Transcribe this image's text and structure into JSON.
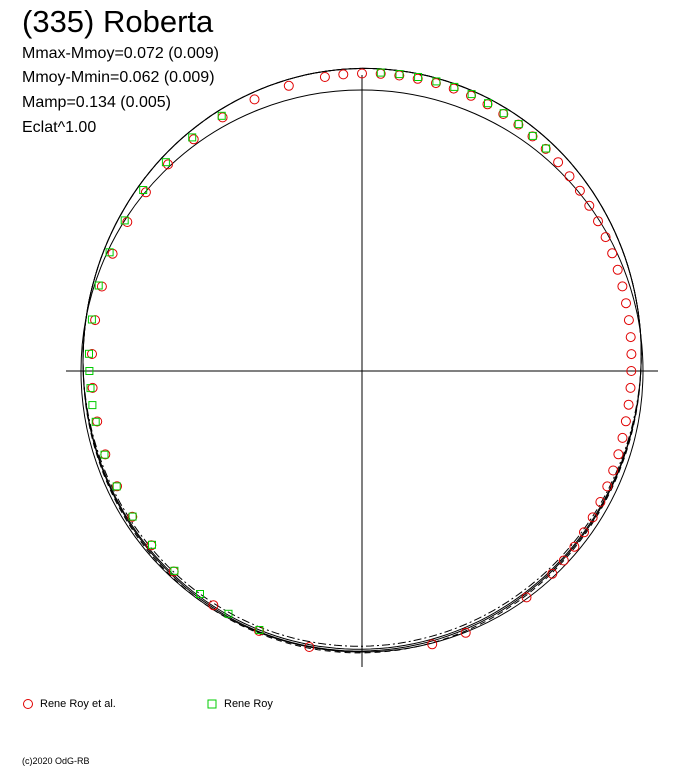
{
  "title": "(335) Roberta",
  "stats": [
    "Mmax-Mmoy=0.072 (0.009)",
    "Mmoy-Mmin=0.062 (0.009)",
    "Mamp=0.134 (0.005)",
    "Eclat^1.00"
  ],
  "credit": "(c)2020 OdG-RB",
  "colors": {
    "series1": "#e00000",
    "series2": "#00cc00",
    "axis": "#000000"
  },
  "chart_data": {
    "type": "scatter",
    "coordinate_system": "polar (phase 0-1 as angle, magnitude offset as radius)",
    "grid": false,
    "legend_position": "bottom-left",
    "reference_curves": [
      "solid",
      "solid",
      "dash-dot",
      "dashed"
    ],
    "series": [
      {
        "name": "Rene Roy et al.",
        "marker": "circle",
        "color": "#e00000",
        "points": [
          {
            "phase": 0.0,
            "dmag": 0.055
          },
          {
            "phase": 0.01,
            "dmag": 0.056
          },
          {
            "phase": 0.02,
            "dmag": 0.056
          },
          {
            "phase": 0.03,
            "dmag": 0.055
          },
          {
            "phase": 0.04,
            "dmag": 0.054
          },
          {
            "phase": 0.05,
            "dmag": 0.053
          },
          {
            "phase": 0.06,
            "dmag": 0.05
          },
          {
            "phase": 0.07,
            "dmag": 0.046
          },
          {
            "phase": 0.08,
            "dmag": 0.041
          },
          {
            "phase": 0.09,
            "dmag": 0.036
          },
          {
            "phase": 0.1,
            "dmag": 0.03
          },
          {
            "phase": 0.11,
            "dmag": 0.024
          },
          {
            "phase": 0.12,
            "dmag": 0.018
          },
          {
            "phase": 0.13,
            "dmag": 0.012
          },
          {
            "phase": 0.14,
            "dmag": 0.006
          },
          {
            "phase": 0.15,
            "dmag": 0.0
          },
          {
            "phase": 0.16,
            "dmag": -0.005
          },
          {
            "phase": 0.17,
            "dmag": -0.01
          },
          {
            "phase": 0.18,
            "dmag": -0.015
          },
          {
            "phase": 0.19,
            "dmag": -0.02
          },
          {
            "phase": 0.2,
            "dmag": -0.024
          },
          {
            "phase": 0.21,
            "dmag": -0.028
          },
          {
            "phase": 0.22,
            "dmag": -0.031
          },
          {
            "phase": 0.23,
            "dmag": -0.034
          },
          {
            "phase": 0.24,
            "dmag": -0.037
          },
          {
            "phase": 0.25,
            "dmag": -0.039
          },
          {
            "phase": 0.26,
            "dmag": -0.04
          },
          {
            "phase": 0.27,
            "dmag": -0.041
          },
          {
            "phase": 0.28,
            "dmag": -0.041
          },
          {
            "phase": 0.29,
            "dmag": -0.04
          },
          {
            "phase": 0.3,
            "dmag": -0.038
          },
          {
            "phase": 0.31,
            "dmag": -0.036
          },
          {
            "phase": 0.32,
            "dmag": -0.033
          },
          {
            "phase": 0.33,
            "dmag": -0.03
          },
          {
            "phase": 0.34,
            "dmag": -0.026
          },
          {
            "phase": 0.35,
            "dmag": -0.022
          },
          {
            "phase": 0.36,
            "dmag": -0.018
          },
          {
            "phase": 0.37,
            "dmag": -0.014
          },
          {
            "phase": 0.38,
            "dmag": -0.01
          },
          {
            "phase": 0.4,
            "dmag": -0.004
          },
          {
            "phase": 0.44,
            "dmag": 0.002
          },
          {
            "phase": 0.46,
            "dmag": 0.004
          },
          {
            "phase": 0.53,
            "dmag": 0.0
          },
          {
            "phase": 0.56,
            "dmag": -0.005
          },
          {
            "phase": 0.59,
            "dmag": -0.012
          },
          {
            "phase": 0.62,
            "dmag": -0.02
          },
          {
            "phase": 0.64,
            "dmag": -0.025
          },
          {
            "phase": 0.66,
            "dmag": -0.03
          },
          {
            "phase": 0.68,
            "dmag": -0.034
          },
          {
            "phase": 0.7,
            "dmag": -0.037
          },
          {
            "phase": 0.72,
            "dmag": -0.038
          },
          {
            "phase": 0.74,
            "dmag": -0.037
          },
          {
            "phase": 0.76,
            "dmag": -0.035
          },
          {
            "phase": 0.78,
            "dmag": -0.031
          },
          {
            "phase": 0.8,
            "dmag": -0.025
          },
          {
            "phase": 0.82,
            "dmag": -0.018
          },
          {
            "phase": 0.84,
            "dmag": -0.01
          },
          {
            "phase": 0.86,
            "dmag": -0.002
          },
          {
            "phase": 0.88,
            "dmag": 0.008
          },
          {
            "phase": 0.9,
            "dmag": 0.018
          },
          {
            "phase": 0.92,
            "dmag": 0.028
          },
          {
            "phase": 0.94,
            "dmag": 0.037
          },
          {
            "phase": 0.96,
            "dmag": 0.045
          },
          {
            "phase": 0.98,
            "dmag": 0.051
          },
          {
            "phase": 0.99,
            "dmag": 0.054
          }
        ]
      },
      {
        "name": "Rene Roy",
        "marker": "square",
        "color": "#00cc00",
        "points": [
          {
            "phase": 0.01,
            "dmag": 0.06
          },
          {
            "phase": 0.02,
            "dmag": 0.061
          },
          {
            "phase": 0.03,
            "dmag": 0.061
          },
          {
            "phase": 0.04,
            "dmag": 0.06
          },
          {
            "phase": 0.05,
            "dmag": 0.059
          },
          {
            "phase": 0.06,
            "dmag": 0.056
          },
          {
            "phase": 0.07,
            "dmag": 0.05
          },
          {
            "phase": 0.08,
            "dmag": 0.044
          },
          {
            "phase": 0.09,
            "dmag": 0.038
          },
          {
            "phase": 0.1,
            "dmag": 0.032
          },
          {
            "phase": 0.11,
            "dmag": 0.026
          },
          {
            "phase": 0.56,
            "dmag": -0.008
          },
          {
            "phase": 0.58,
            "dmag": -0.013
          },
          {
            "phase": 0.6,
            "dmag": -0.018
          },
          {
            "phase": 0.62,
            "dmag": -0.023
          },
          {
            "phase": 0.64,
            "dmag": -0.028
          },
          {
            "phase": 0.66,
            "dmag": -0.031
          },
          {
            "phase": 0.68,
            "dmag": -0.033
          },
          {
            "phase": 0.7,
            "dmag": -0.034
          },
          {
            "phase": 0.72,
            "dmag": -0.033
          },
          {
            "phase": 0.73,
            "dmag": -0.031
          },
          {
            "phase": 0.74,
            "dmag": -0.03
          },
          {
            "phase": 0.75,
            "dmag": -0.028
          },
          {
            "phase": 0.76,
            "dmag": -0.025
          },
          {
            "phase": 0.78,
            "dmag": -0.02
          },
          {
            "phase": 0.8,
            "dmag": -0.014
          },
          {
            "phase": 0.82,
            "dmag": -0.007
          },
          {
            "phase": 0.84,
            "dmag": 0.0
          },
          {
            "phase": 0.86,
            "dmag": 0.01
          },
          {
            "phase": 0.88,
            "dmag": 0.018
          },
          {
            "phase": 0.9,
            "dmag": 0.026
          },
          {
            "phase": 0.92,
            "dmag": 0.034
          }
        ]
      }
    ]
  }
}
